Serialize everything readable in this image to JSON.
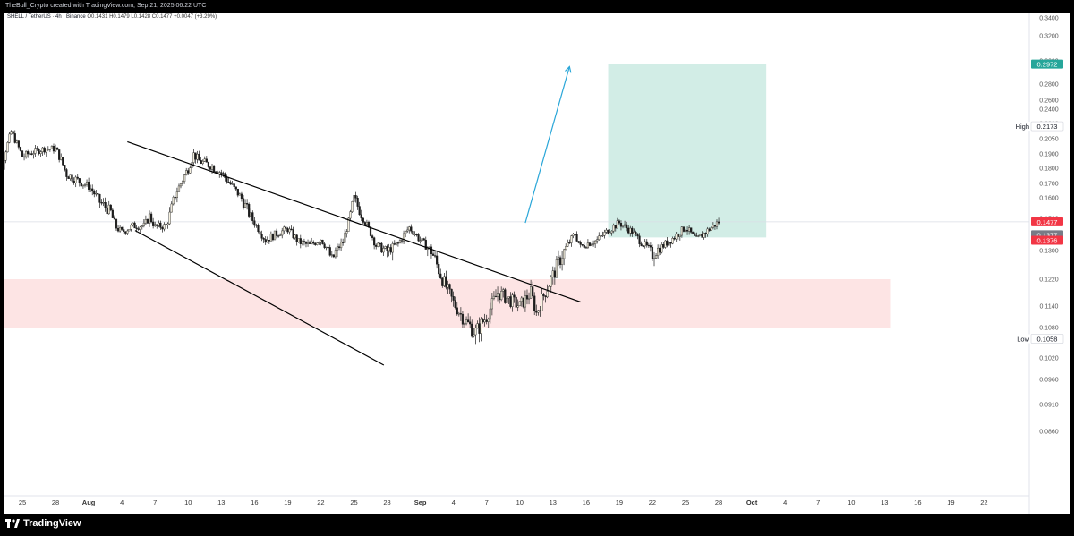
{
  "header": {
    "credit": "TheBull_Crypto created with TradingView.com, Sep 21, 2025 06:22 UTC"
  },
  "legend": {
    "symbol": "SHELL / TetherUS · 4h · Binance",
    "ohlc": "O0.1431  H0.1479  L0.1428  C0.1477  +0.0047 (+3.29%)"
  },
  "brand": {
    "name": "TradingView"
  },
  "colors": {
    "up": "#f5f0df",
    "down": "#1c1c1c",
    "demand_zone": "#fde4e4",
    "target_zone": "#d2ede6",
    "arrow": "#29a6d8",
    "price_tag": "#f23645",
    "target_tag": "#26a69a",
    "gray_tag": "#787b86"
  },
  "chart_data": {
    "type": "candlestick",
    "title": "",
    "xlabel": "",
    "ylabel": "",
    "y_ticks": [
      "0.3400",
      "0.3200",
      "0.3000",
      "0.2800",
      "0.2600",
      "0.2400",
      "0.2200",
      "0.2050",
      "0.1900",
      "0.1800",
      "0.1700",
      "0.1600",
      "0.1500",
      "0.1400",
      "0.1300",
      "0.1220",
      "0.1140",
      "0.1080",
      "0.1020",
      "0.0960",
      "0.0910",
      "0.0860"
    ],
    "x_ticks": [
      "25",
      "28",
      "Aug",
      "4",
      "7",
      "10",
      "13",
      "16",
      "19",
      "22",
      "25",
      "28",
      "Sep",
      "4",
      "7",
      "10",
      "13",
      "16",
      "19",
      "22",
      "25",
      "28",
      "Oct",
      "4",
      "7",
      "10",
      "13",
      "16",
      "19",
      "22"
    ],
    "price_labels": [
      {
        "id": "target",
        "text": "0.2972",
        "value": 0.2972,
        "style": "target"
      },
      {
        "id": "high",
        "label": "High",
        "text": "0.2173",
        "value": 0.2173,
        "style": "plain"
      },
      {
        "id": "last",
        "text": "0.1477",
        "value": 0.1477,
        "style": "red"
      },
      {
        "id": "entry",
        "text": "0.1377",
        "value": 0.1377,
        "style": "gray"
      },
      {
        "id": "stop",
        "text": "0.1376",
        "value": 0.1376,
        "style": "red"
      },
      {
        "id": "low",
        "label": "Low",
        "text": "0.1058",
        "value": 0.1058,
        "style": "plain"
      }
    ],
    "channel": {
      "upper": {
        "from": {
          "day": 9.5,
          "price": 0.202
        },
        "to": {
          "day": 50.5,
          "price": 0.1152
        }
      },
      "lower": {
        "from": {
          "day": 10.2,
          "price": 0.142
        },
        "to": {
          "day": 32.7,
          "price": 0.1
        }
      }
    },
    "demand_zone": {
      "from_day": -3.0,
      "to_day": 78.5,
      "low": 0.108,
      "high": 0.122
    },
    "target_zone": {
      "from_day": 53.0,
      "to_day": 67.3,
      "low": 0.1377,
      "high": 0.2972
    },
    "projection": {
      "from": {
        "day": 45.5,
        "price": 0.147
      },
      "to": {
        "day": 49.5,
        "price": 0.295
      }
    },
    "last_price": 0.1477,
    "waypoints": [
      [
        -3,
        0.183
      ],
      [
        -2,
        0.176
      ],
      [
        -1,
        0.212
      ],
      [
        0,
        0.188
      ],
      [
        1,
        0.192
      ],
      [
        2,
        0.195
      ],
      [
        3,
        0.195
      ],
      [
        4,
        0.176
      ],
      [
        5,
        0.172
      ],
      [
        6,
        0.168
      ],
      [
        7,
        0.158
      ],
      [
        8,
        0.153
      ],
      [
        8.5,
        0.144
      ],
      [
        9,
        0.141
      ],
      [
        10,
        0.145
      ],
      [
        11,
        0.145
      ],
      [
        11.5,
        0.151
      ],
      [
        12,
        0.1445
      ],
      [
        13,
        0.145
      ],
      [
        14,
        0.165
      ],
      [
        15,
        0.18
      ],
      [
        15.5,
        0.19
      ],
      [
        16,
        0.185
      ],
      [
        17,
        0.182
      ],
      [
        18,
        0.177
      ],
      [
        19,
        0.168
      ],
      [
        20,
        0.158
      ],
      [
        21,
        0.147
      ],
      [
        22,
        0.136
      ],
      [
        23,
        0.14
      ],
      [
        24,
        0.143
      ],
      [
        25,
        0.135
      ],
      [
        26,
        0.133
      ],
      [
        27,
        0.137
      ],
      [
        28,
        0.127
      ],
      [
        29,
        0.135
      ],
      [
        30,
        0.16
      ],
      [
        31,
        0.148
      ],
      [
        32,
        0.133
      ],
      [
        33,
        0.13
      ],
      [
        34,
        0.134
      ],
      [
        35,
        0.144
      ],
      [
        36,
        0.136
      ],
      [
        37,
        0.13
      ],
      [
        38,
        0.122
      ],
      [
        39,
        0.115
      ],
      [
        40,
        0.11
      ],
      [
        41,
        0.107
      ],
      [
        42,
        0.111
      ],
      [
        43,
        0.118
      ],
      [
        44,
        0.116
      ],
      [
        45,
        0.114
      ],
      [
        46,
        0.118
      ],
      [
        46.5,
        0.112
      ],
      [
        47,
        0.116
      ],
      [
        48,
        0.123
      ],
      [
        49,
        0.13
      ],
      [
        50,
        0.14
      ],
      [
        50.5,
        0.132
      ],
      [
        51,
        0.134
      ],
      [
        52,
        0.136
      ],
      [
        53,
        0.142
      ],
      [
        54,
        0.147
      ],
      [
        55,
        0.142
      ],
      [
        56,
        0.135
      ],
      [
        57,
        0.129
      ],
      [
        58,
        0.133
      ],
      [
        59,
        0.138
      ],
      [
        60,
        0.144
      ],
      [
        61,
        0.136
      ],
      [
        62,
        0.142
      ],
      [
        63,
        0.1477
      ]
    ]
  }
}
